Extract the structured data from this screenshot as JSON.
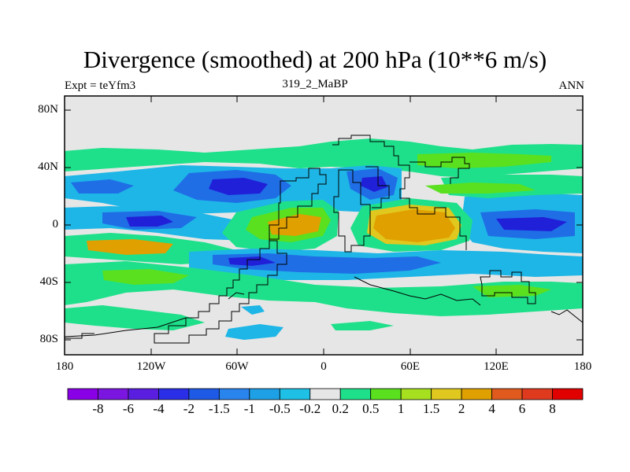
{
  "title": "Divergence (smoothed) at 200 hPa (10**6 m/s)",
  "subtitle": {
    "left": "Expt = teYfm3",
    "center": "319_2_MaBP",
    "right": "ANN"
  },
  "axes": {
    "y_ticks": [
      "80N",
      "40N",
      "0",
      "40S",
      "80S"
    ],
    "x_ticks": [
      "180",
      "120W",
      "60W",
      "0",
      "60E",
      "120E",
      "180"
    ]
  },
  "colorbar": {
    "labels": [
      "-8",
      "-6",
      "-4",
      "-2",
      "-1.5",
      "-1",
      "-0.5",
      "-0.2",
      "0.2",
      "0.5",
      "1",
      "1.5",
      "2",
      "4",
      "6",
      "8"
    ],
    "colors": [
      "#8a00e6",
      "#7a16e0",
      "#5a1ee0",
      "#2a2ee6",
      "#1f5ae6",
      "#2a84ee",
      "#1ea0e6",
      "#1ec0e6",
      "#e6e6e6",
      "#1ee08a",
      "#5ae01e",
      "#a6e01e",
      "#e0c81e",
      "#e0a000",
      "#e05a1e",
      "#e03a1e",
      "#e00000"
    ]
  },
  "colors": {
    "neg_strong": "#2020d8",
    "neg_mid": "#1f6ee6",
    "neg_weak": "#1eb6e6",
    "neutral": "#e6e6e6",
    "pos_weak": "#1ee08a",
    "pos_mid": "#5ae01e",
    "pos_strong": "#e0a000"
  }
}
